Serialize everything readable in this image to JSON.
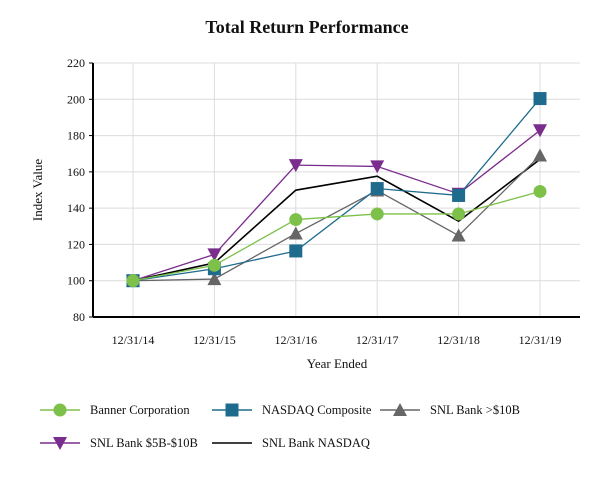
{
  "chart_data": {
    "type": "line",
    "title": "Total Return Performance",
    "xlabel": "Year Ended",
    "ylabel": "Index Value",
    "categories": [
      "12/31/14",
      "12/31/15",
      "12/31/16",
      "12/31/17",
      "12/31/18",
      "12/31/19"
    ],
    "ylim": [
      80,
      220
    ],
    "yticks": [
      80,
      100,
      120,
      140,
      160,
      180,
      200,
      220
    ],
    "grid": true,
    "legend_position": "bottom",
    "series": [
      {
        "name": "Banner Corporation",
        "color": "#7dc14a",
        "marker": "circle",
        "values": [
          100,
          108.5,
          133.7,
          136.8,
          136.8,
          149.2
        ]
      },
      {
        "name": "NASDAQ Composite",
        "color": "#1f6b8e",
        "marker": "square",
        "values": [
          100,
          106.6,
          116.4,
          150.8,
          147.0,
          200.4
        ]
      },
      {
        "name": "SNL Bank >$10B",
        "color": "#666666",
        "marker": "triangle-up",
        "values": [
          100,
          100.9,
          126.0,
          149.7,
          124.9,
          169.0
        ]
      },
      {
        "name": "SNL Bank $5B-$10B",
        "color": "#7b2d8e",
        "marker": "triangle-down",
        "values": [
          100,
          114.5,
          163.7,
          163.0,
          147.9,
          182.9
        ]
      },
      {
        "name": "SNL Bank NASDAQ",
        "color": "#000000",
        "marker": "none",
        "values": [
          100,
          109.8,
          149.9,
          157.6,
          132.8,
          166.9
        ]
      }
    ]
  }
}
